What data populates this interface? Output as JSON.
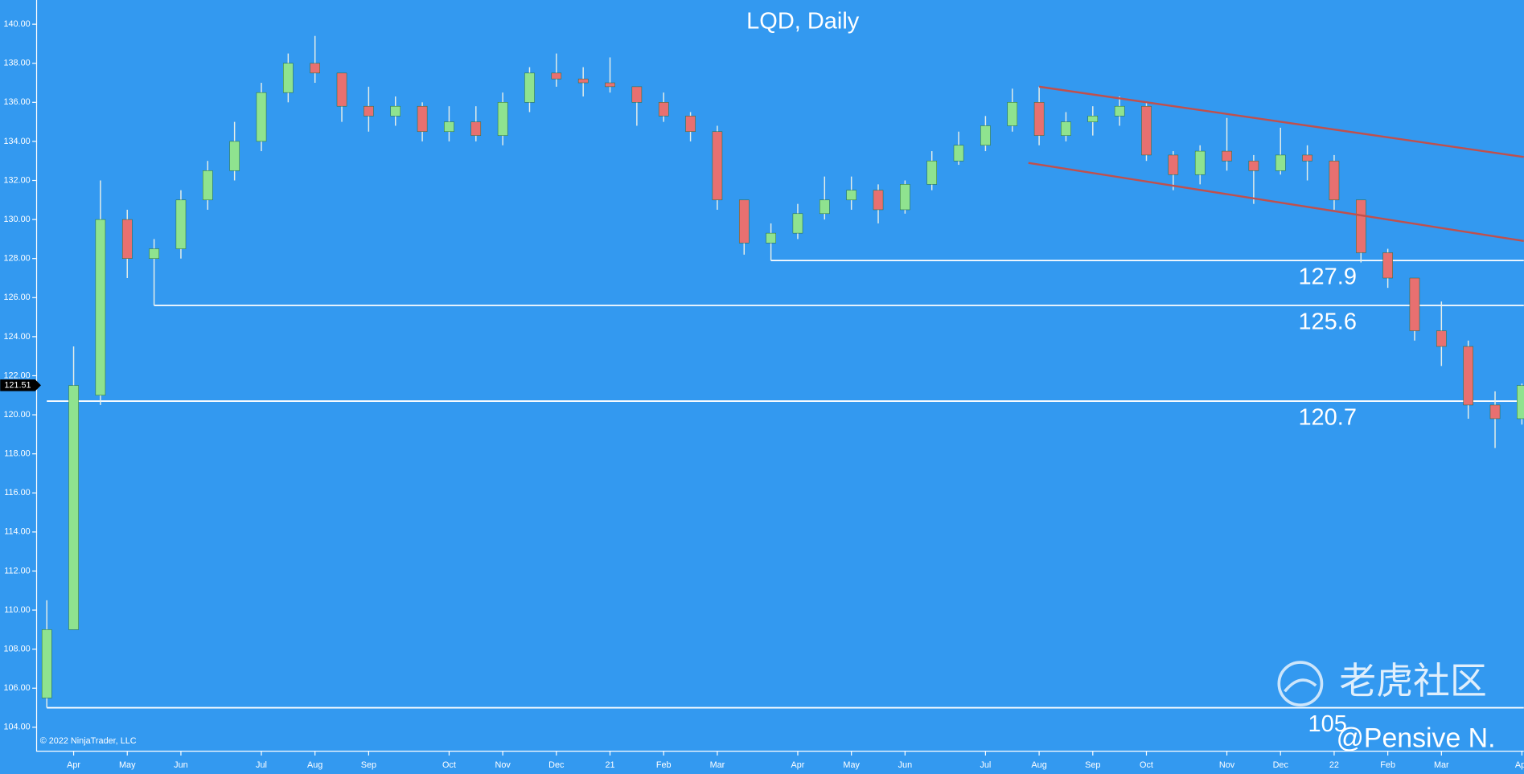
{
  "chart_data": {
    "type": "candlestick",
    "title": "LQD, Daily",
    "copyright": "© 2022 NinjaTrader, LLC",
    "watermark": "老虎社区",
    "author": "@Pensive N.",
    "up_color": "#8fe38f",
    "down_color": "#e87070",
    "wick_color": "#e8efe8",
    "level_color": "#ffffff",
    "trend_color": "#c0504d",
    "categories": [
      null,
      "Apr",
      null,
      "May",
      null,
      "Jun",
      null,
      null,
      "Jul",
      null,
      "Aug",
      null,
      "Sep",
      null,
      null,
      "Oct",
      null,
      "Nov",
      null,
      "Dec",
      null,
      "21",
      null,
      "Feb",
      null,
      "Mar",
      null,
      null,
      "Apr",
      null,
      "May",
      null,
      "Jun",
      null,
      null,
      "Jul",
      null,
      "Aug",
      null,
      "Sep",
      null,
      "Oct",
      null,
      null,
      "Nov",
      null,
      "Dec",
      null,
      "22",
      null,
      "Feb",
      null,
      "Mar",
      null,
      null,
      "Apr"
    ],
    "open": [
      105.5,
      109,
      121,
      130,
      128,
      128.5,
      131,
      132.5,
      134,
      136.5,
      138,
      137.5,
      135.8,
      135.3,
      135.8,
      134.5,
      135,
      134.3,
      136,
      137.5,
      137.2,
      137,
      136.8,
      136,
      135.3,
      134.5,
      131,
      128.8,
      129.3,
      130.3,
      131,
      131.5,
      130.5,
      131.8,
      133,
      133.8,
      134.8,
      136,
      134.3,
      135,
      135.3,
      135.8,
      133.3,
      132.3,
      133.5,
      133,
      132.5,
      133.3,
      133,
      131,
      128.3,
      127,
      124.3,
      123.5,
      120.5,
      119.8
    ],
    "high": [
      110.5,
      123.5,
      132,
      130.5,
      129,
      131.5,
      133,
      135,
      137,
      138.5,
      139.4,
      137.5,
      136.8,
      136.3,
      136,
      135.8,
      135.8,
      136.5,
      137.8,
      138.5,
      137.8,
      138.3,
      136.8,
      136.5,
      135.5,
      134.8,
      131,
      129.8,
      130.8,
      132.2,
      132.2,
      131.8,
      132,
      133.5,
      134.5,
      135.3,
      136.7,
      136.8,
      135.5,
      135.8,
      136.3,
      136,
      133.5,
      133.8,
      135.2,
      133.3,
      134.7,
      133.8,
      133.3,
      131,
      128.5,
      127,
      125.8,
      123.8,
      121.2,
      121.6
    ],
    "low": [
      105,
      109,
      120.5,
      127,
      125.6,
      128,
      130.5,
      132,
      133.5,
      136,
      137,
      135,
      134.5,
      134.8,
      134,
      134,
      134,
      133.8,
      135.5,
      136.8,
      136.3,
      136.5,
      134.8,
      135,
      134,
      130.5,
      128.2,
      127.9,
      129,
      130,
      130.5,
      129.8,
      130.3,
      131.5,
      132.8,
      133.5,
      134.5,
      133.8,
      134,
      134.3,
      134.8,
      133,
      131.5,
      131.8,
      132.5,
      130.8,
      132.3,
      132,
      130.5,
      127.8,
      126.5,
      123.8,
      122.5,
      119.8,
      118.3,
      119.5
    ],
    "close": [
      109,
      121.5,
      130,
      128,
      128.5,
      131,
      132.5,
      134,
      136.5,
      138,
      137.5,
      135.8,
      135.3,
      135.8,
      134.5,
      135,
      134.3,
      136,
      137.5,
      137.2,
      137,
      136.8,
      136,
      135.3,
      134.5,
      131,
      128.8,
      129.3,
      130.3,
      131,
      131.5,
      130.5,
      131.8,
      133,
      133.8,
      134.8,
      136,
      134.3,
      135,
      135.3,
      135.8,
      133.3,
      132.3,
      133.5,
      133,
      132.5,
      133.3,
      133,
      131,
      128.3,
      127,
      124.3,
      123.5,
      120.5,
      119.8,
      121.5
    ],
    "levels": [
      127.9,
      125.6,
      120.7,
      105
    ],
    "trendlines": [
      {
        "start": [
          37,
          136.8
        ],
        "end": [
          55.07,
          133.2
        ]
      },
      {
        "start": [
          36.6,
          132.9
        ],
        "end": [
          55.07,
          128.9
        ]
      }
    ],
    "last_price": {
      "value": 121.51,
      "label": "121.51"
    },
    "ylim": [
      102.8,
      141.24
    ],
    "yticks": [
      {
        "value": 104,
        "label": "104.00"
      },
      {
        "value": 106,
        "label": "106.00"
      },
      {
        "value": 108,
        "label": "108.00"
      },
      {
        "value": 110,
        "label": "110.00"
      },
      {
        "value": 112,
        "label": "112.00"
      },
      {
        "value": 114,
        "label": "114.00"
      },
      {
        "value": 116,
        "label": "116.00"
      },
      {
        "value": 118,
        "label": "118.00"
      },
      {
        "value": 120,
        "label": "120.00"
      },
      {
        "value": 122,
        "label": "122.00"
      },
      {
        "value": 124,
        "label": "124.00"
      },
      {
        "value": 126,
        "label": "126.00"
      },
      {
        "value": 128,
        "label": "128.00"
      },
      {
        "value": 130,
        "label": "130.00"
      },
      {
        "value": 132,
        "label": "132.00"
      },
      {
        "value": 134,
        "label": "134.00"
      },
      {
        "value": 136,
        "label": "136.00"
      },
      {
        "value": 138,
        "label": "138.00"
      },
      {
        "value": 140,
        "label": "140.00"
      }
    ],
    "grid": false
  }
}
